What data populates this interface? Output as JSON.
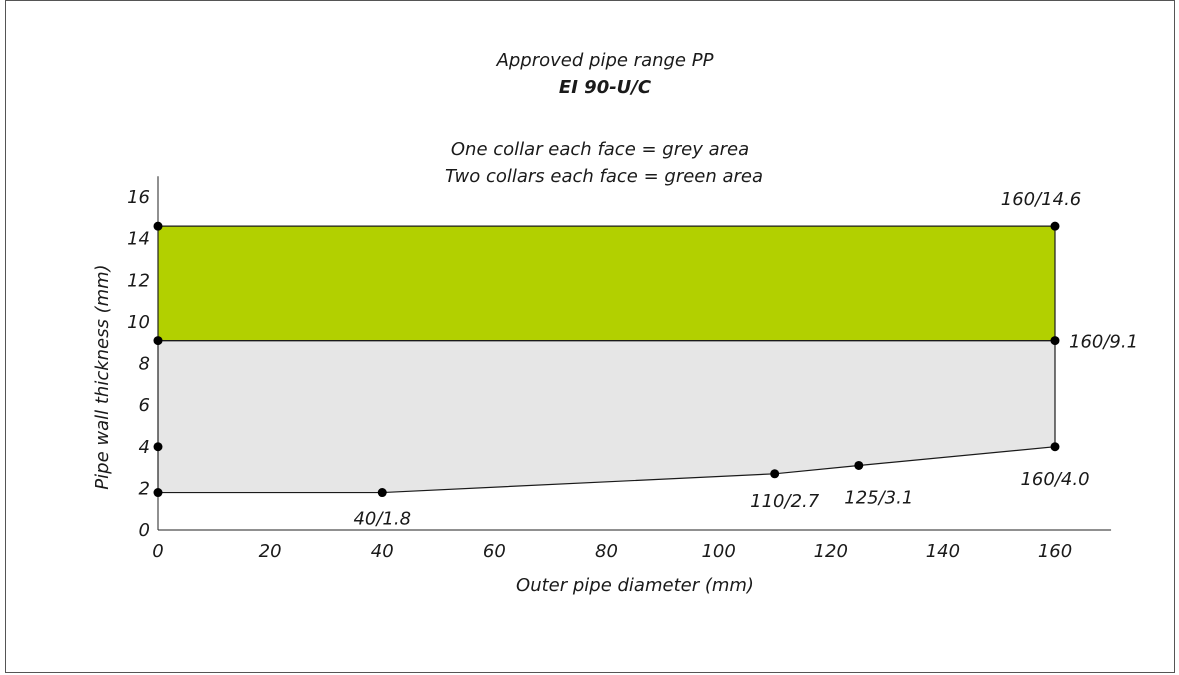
{
  "chart_data": {
    "type": "area",
    "title": "Approved pipe range PP",
    "subtitle": "EI 90-U/C",
    "legend_lines": [
      "One collar each face = grey area",
      "Two collars each face = green area"
    ],
    "xlabel": "Outer pipe diameter (mm)",
    "ylabel": "Pipe wall thickness (mm)",
    "xlim": [
      0,
      170
    ],
    "ylim": [
      0,
      17
    ],
    "xticks": [
      0,
      20,
      40,
      60,
      80,
      100,
      120,
      140,
      160
    ],
    "yticks": [
      0,
      2,
      4,
      6,
      8,
      10,
      12,
      14,
      16
    ],
    "regions": [
      {
        "name": "grey area",
        "color": "#e6e6e6",
        "polygon": [
          [
            0,
            1.8
          ],
          [
            40,
            1.8
          ],
          [
            110,
            2.7
          ],
          [
            125,
            3.1
          ],
          [
            160,
            4.0
          ],
          [
            160,
            9.1
          ],
          [
            0,
            9.1
          ]
        ]
      },
      {
        "name": "green area",
        "color": "#b2d000",
        "polygon": [
          [
            0,
            9.1
          ],
          [
            160,
            9.1
          ],
          [
            160,
            14.6
          ],
          [
            0,
            14.6
          ]
        ]
      }
    ],
    "points": [
      {
        "x": 0,
        "y": 1.8,
        "label": ""
      },
      {
        "x": 0,
        "y": 4.0,
        "label": ""
      },
      {
        "x": 0,
        "y": 9.1,
        "label": ""
      },
      {
        "x": 0,
        "y": 14.6,
        "label": ""
      },
      {
        "x": 40,
        "y": 1.8,
        "label": "40/1.8"
      },
      {
        "x": 110,
        "y": 2.7,
        "label": "110/2.7"
      },
      {
        "x": 125,
        "y": 3.1,
        "label": "125/3.1"
      },
      {
        "x": 160,
        "y": 4.0,
        "label": "160/4.0"
      },
      {
        "x": 160,
        "y": 9.1,
        "label": "160/9.1"
      },
      {
        "x": 160,
        "y": 14.6,
        "label": "160/14.6"
      }
    ]
  }
}
